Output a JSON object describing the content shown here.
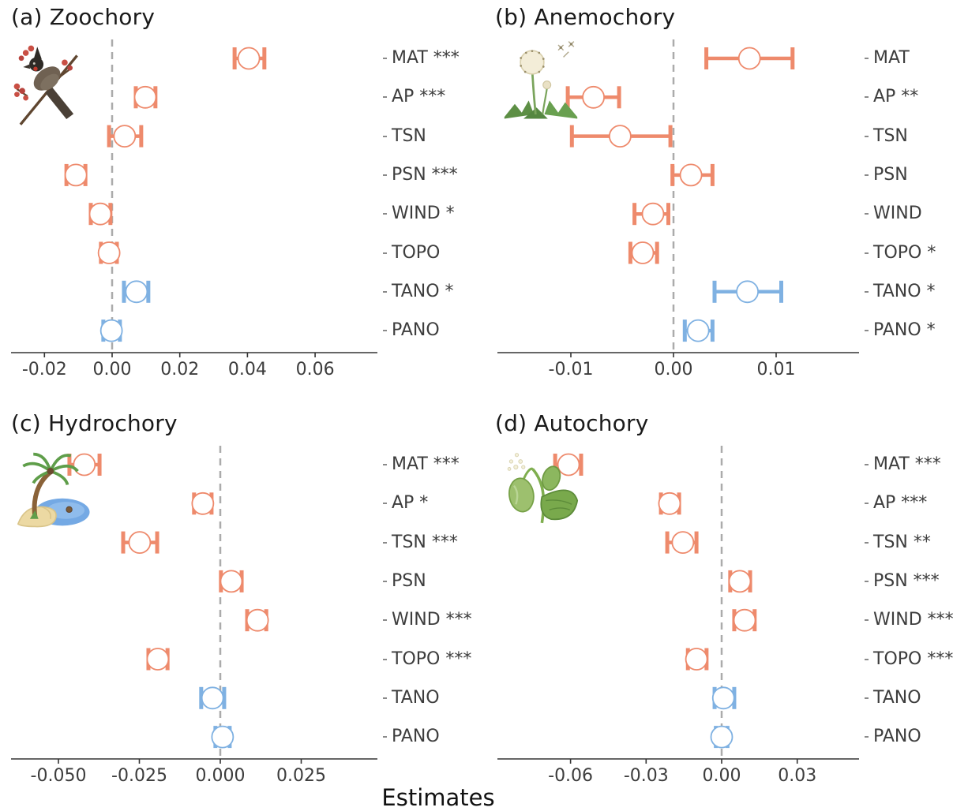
{
  "figure": {
    "xlabel": "Estimates",
    "colors": {
      "climate": "#EE8A6C",
      "anthropogenic": "#7FB1E2",
      "axis": "#333333",
      "zero_line": "#ABABAB",
      "tick_text": "#3d3d3d",
      "label_text": "#3d3d3d",
      "title_text": "#1a1a1a"
    }
  },
  "chart_data": [
    {
      "type": "scatter",
      "subtype": "forest-dot-whisker",
      "panel": "a",
      "title": "(a) Zoochory",
      "illustration": "bird-perched-on-berry-branch",
      "legend_position": "none",
      "grid": false,
      "xlim": [
        -0.03,
        0.078
      ],
      "xticks": {
        "values": [
          -0.02,
          0.0,
          0.02,
          0.04,
          0.06
        ],
        "labels": [
          "-0.02",
          "0.00",
          "0.02",
          "0.04",
          "0.06"
        ]
      },
      "categories": [
        "MAT",
        "AP",
        "TSN",
        "PSN",
        "WIND",
        "TOPO",
        "TANO",
        "PANO"
      ],
      "significance": [
        "***",
        "***",
        "",
        "***",
        "*",
        "",
        "*",
        ""
      ],
      "groups": [
        "climate",
        "climate",
        "climate",
        "climate",
        "climate",
        "climate",
        "anthropogenic",
        "anthropogenic"
      ],
      "estimates": [
        0.0404,
        0.0098,
        0.0037,
        -0.0107,
        -0.0035,
        -0.0009,
        0.0072,
        -0.0002
      ],
      "ci_low": [
        0.0362,
        0.007,
        -0.0009,
        -0.0135,
        -0.0063,
        -0.0033,
        0.0035,
        -0.0026
      ],
      "ci_high": [
        0.045,
        0.0128,
        0.0086,
        -0.0079,
        -0.0005,
        0.0014,
        0.0107,
        0.0023
      ]
    },
    {
      "type": "scatter",
      "subtype": "forest-dot-whisker",
      "panel": "b",
      "title": "(b) Anemochory",
      "illustration": "dandelion-with-flying-seeds",
      "legend_position": "none",
      "grid": false,
      "xlim": [
        -0.0172,
        0.0181
      ],
      "xticks": {
        "values": [
          -0.01,
          0.0,
          0.01
        ],
        "labels": [
          "-0.01",
          "0.00",
          "0.01"
        ]
      },
      "categories": [
        "MAT",
        "AP",
        "TSN",
        "PSN",
        "WIND",
        "TOPO",
        "TANO",
        "PANO"
      ],
      "significance": [
        "",
        "**",
        "",
        "",
        "",
        "*",
        "*",
        "*"
      ],
      "groups": [
        "climate",
        "climate",
        "climate",
        "climate",
        "climate",
        "climate",
        "anthropogenic",
        "anthropogenic"
      ],
      "estimates": [
        0.0074,
        -0.0078,
        -0.0052,
        0.0017,
        -0.002,
        -0.003,
        0.0072,
        0.0024
      ],
      "ci_low": [
        0.0032,
        -0.0103,
        -0.0099,
        -0.0001,
        -0.0038,
        -0.0042,
        0.004,
        0.0011
      ],
      "ci_high": [
        0.0116,
        -0.0053,
        -0.0003,
        0.0038,
        -0.0005,
        -0.0016,
        0.0105,
        0.0038
      ]
    },
    {
      "type": "scatter",
      "subtype": "forest-dot-whisker",
      "panel": "c",
      "title": "(c) Hydrochory",
      "illustration": "palm-tree-island-with-water",
      "legend_position": "none",
      "grid": false,
      "xlim": [
        -0.0646,
        0.0485
      ],
      "xticks": {
        "values": [
          -0.05,
          -0.025,
          0.0,
          0.025
        ],
        "labels": [
          "-0.050",
          "-0.025",
          "0.000",
          "0.025"
        ]
      },
      "categories": [
        "MAT",
        "AP",
        "TSN",
        "PSN",
        "WIND",
        "TOPO",
        "TANO",
        "PANO"
      ],
      "significance": [
        "***",
        "*",
        "***",
        "",
        "***",
        "***",
        "",
        ""
      ],
      "groups": [
        "climate",
        "climate",
        "climate",
        "climate",
        "climate",
        "climate",
        "anthropogenic",
        "anthropogenic"
      ],
      "estimates": [
        -0.042,
        -0.0054,
        -0.0249,
        0.0034,
        0.0115,
        -0.0193,
        -0.0024,
        0.0007
      ],
      "ci_low": [
        -0.0466,
        -0.0081,
        -0.03,
        0.0002,
        0.0083,
        -0.0222,
        -0.0059,
        -0.0015
      ],
      "ci_high": [
        -0.0373,
        -0.0027,
        -0.0195,
        0.0066,
        0.0142,
        -0.0163,
        0.0012,
        0.0029
      ]
    },
    {
      "type": "scatter",
      "subtype": "forest-dot-whisker",
      "panel": "d",
      "title": "(d) Autochory",
      "illustration": "green-seed-pod-plant-ejecting-seeds",
      "legend_position": "none",
      "grid": false,
      "xlim": [
        -0.089,
        0.0545
      ],
      "xticks": {
        "values": [
          -0.06,
          -0.03,
          0.0,
          0.03
        ],
        "labels": [
          "-0.06",
          "-0.03",
          "0.00",
          "0.03"
        ]
      },
      "categories": [
        "MAT",
        "AP",
        "TSN",
        "PSN",
        "WIND",
        "TOPO",
        "TANO",
        "PANO"
      ],
      "significance": [
        "***",
        "***",
        "**",
        "***",
        "***",
        "***",
        "",
        ""
      ],
      "groups": [
        "climate",
        "climate",
        "climate",
        "climate",
        "climate",
        "climate",
        "anthropogenic",
        "anthropogenic"
      ],
      "estimates": [
        -0.0608,
        -0.0207,
        -0.0154,
        0.0072,
        0.0091,
        -0.01,
        0.0007,
        0.0
      ],
      "ci_low": [
        -0.0661,
        -0.0241,
        -0.0216,
        0.0034,
        0.005,
        -0.0134,
        -0.0028,
        -0.0023
      ],
      "ci_high": [
        -0.0558,
        -0.0169,
        -0.01,
        0.0113,
        0.0131,
        -0.006,
        0.005,
        0.0023
      ]
    }
  ]
}
